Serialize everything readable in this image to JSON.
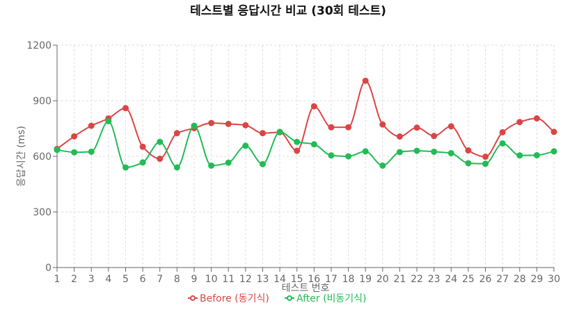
{
  "chart_data": {
    "type": "line",
    "title": "테스트별 응답시간 비교 (30회 테스트)",
    "xlabel": "테스트 번호",
    "ylabel": "응답시간 (ms)",
    "ylim": [
      0,
      1200
    ],
    "yticks": [
      0,
      300,
      600,
      900,
      1200
    ],
    "grid": true,
    "legend": "bottom-center",
    "categories": [
      "1",
      "2",
      "3",
      "4",
      "5",
      "6",
      "7",
      "8",
      "9",
      "10",
      "11",
      "12",
      "13",
      "14",
      "15",
      "16",
      "17",
      "18",
      "19",
      "20",
      "21",
      "22",
      "23",
      "24",
      "25",
      "26",
      "27",
      "28",
      "29",
      "30"
    ],
    "series": [
      {
        "name": "Before (동기식)",
        "color": "#dc4545",
        "values": [
          640,
          708,
          765,
          805,
          860,
          652,
          587,
          725,
          752,
          780,
          775,
          768,
          725,
          730,
          630,
          870,
          757,
          757,
          1008,
          772,
          707,
          755,
          710,
          762,
          632,
          598,
          730,
          785,
          805,
          732
        ]
      },
      {
        "name": "After (비동기식)",
        "color": "#22bb55",
        "values": [
          635,
          622,
          625,
          790,
          540,
          567,
          678,
          540,
          765,
          550,
          566,
          657,
          558,
          732,
          678,
          665,
          605,
          600,
          627,
          550,
          623,
          630,
          625,
          617,
          563,
          560,
          670,
          605,
          606,
          627
        ]
      }
    ]
  }
}
